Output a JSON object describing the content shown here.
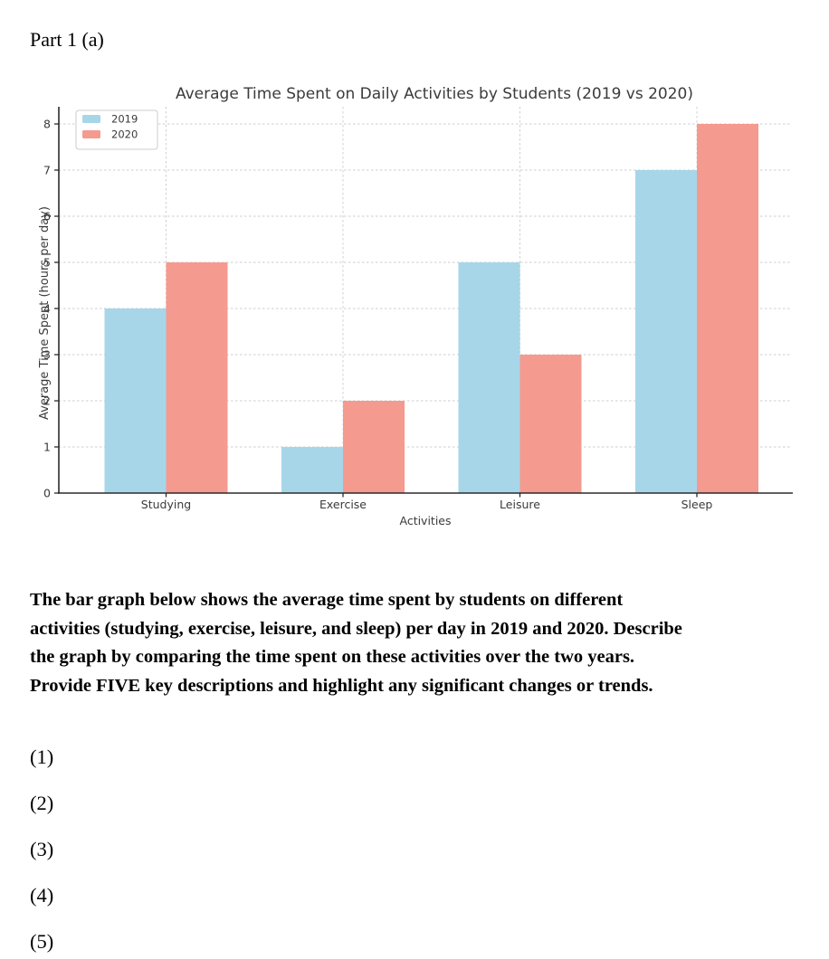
{
  "document": {
    "part_label": "Part 1 (a)",
    "instruction_lines": [
      "The bar graph below shows the average time spent by students on different",
      "activities (studying, exercise, leisure, and sleep) per day in 2019 and 2020. Describe",
      "the graph by comparing the time spent on these activities over the two years.",
      "Provide FIVE key descriptions and highlight any significant changes or trends."
    ],
    "answer_items": [
      {
        "label": "(1)"
      },
      {
        "label": "(2)"
      },
      {
        "label": "(3)"
      },
      {
        "label": "(4)"
      },
      {
        "label": "(5)"
      }
    ]
  },
  "chart_data": {
    "type": "bar",
    "title": "Average Time Spent on Daily Activities by Students (2019 vs 2020)",
    "xlabel": "Activities",
    "ylabel": "Average Time Spent (hours per day)",
    "categories": [
      "Studying",
      "Exercise",
      "Leisure",
      "Sleep"
    ],
    "series": [
      {
        "name": "2019",
        "color": "#a7d6e8",
        "values": [
          4,
          1,
          5,
          7
        ]
      },
      {
        "name": "2020",
        "color": "#f59a8f",
        "values": [
          5,
          2,
          3,
          8
        ]
      }
    ],
    "ylim": [
      0,
      8.4
    ],
    "yticks": [
      0,
      1,
      2,
      3,
      4,
      5,
      6,
      7,
      8
    ],
    "grid": true,
    "legend_position": "upper left",
    "colors": {
      "axis": "#2b2b2b",
      "text": "#3a3a3a",
      "grid": "#cccccc",
      "legend_border": "#cccccc",
      "legend_fill": "#ffffff"
    }
  }
}
